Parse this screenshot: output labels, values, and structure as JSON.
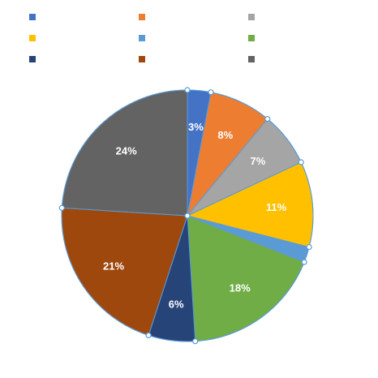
{
  "chart_data": {
    "type": "pie",
    "title": "",
    "slices": [
      {
        "name": "",
        "value": 3,
        "label": "3%",
        "color": "#4472C4"
      },
      {
        "name": "",
        "value": 8,
        "label": "8%",
        "color": "#ED7D31"
      },
      {
        "name": "",
        "value": 7,
        "label": "7%",
        "color": "#A5A5A5"
      },
      {
        "name": "",
        "value": 11,
        "label": "11%",
        "color": "#FFC000"
      },
      {
        "name": "",
        "value": 2,
        "label": "",
        "color": "#5B9BD5"
      },
      {
        "name": "",
        "value": 18,
        "label": "18%",
        "color": "#70AD47"
      },
      {
        "name": "",
        "value": 6,
        "label": "6%",
        "color": "#264478"
      },
      {
        "name": "",
        "value": 21,
        "label": "21%",
        "color": "#9E480E"
      },
      {
        "name": "",
        "value": 24,
        "label": "24%",
        "color": "#636363"
      }
    ],
    "outline_color": "#5B9BD5",
    "selection_handle_color": "#5B9BD5",
    "label_color": "#FFFFFF",
    "legend_position": "top"
  }
}
